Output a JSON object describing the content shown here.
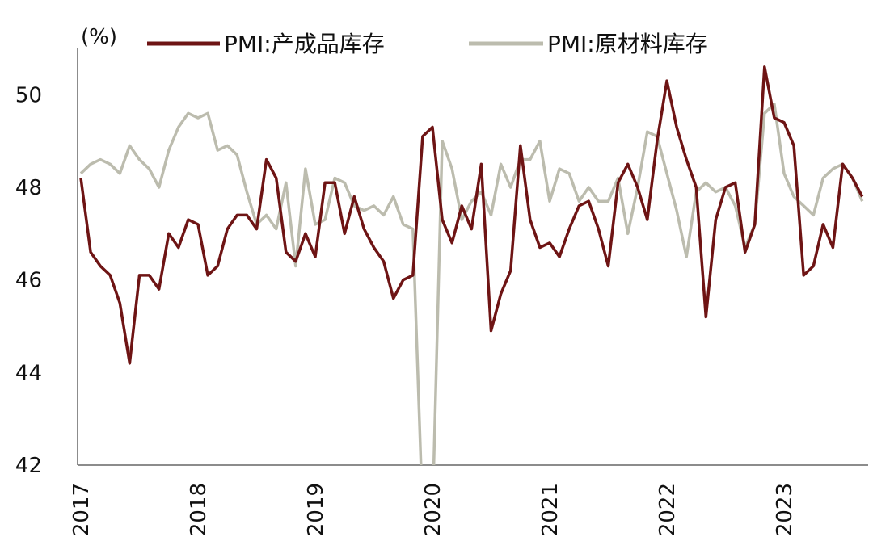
{
  "chart_data": {
    "type": "line",
    "unit_label": "(%)",
    "ylim": [
      42,
      51
    ],
    "y_ticks": [
      "42",
      "44",
      "46",
      "48",
      "50"
    ],
    "x_tick_labels": [
      "2017",
      "2018",
      "2019",
      "2020",
      "2021",
      "2022",
      "2023"
    ],
    "grid": false,
    "legend_position": "top",
    "series": [
      {
        "name": "PMI:产成品库存",
        "color": "#6e1414",
        "x": [
          "2017-01",
          "2017-02",
          "2017-03",
          "2017-04",
          "2017-05",
          "2017-06",
          "2017-07",
          "2017-08",
          "2017-09",
          "2017-10",
          "2017-11",
          "2017-12",
          "2018-01",
          "2018-02",
          "2018-03",
          "2018-04",
          "2018-05",
          "2018-06",
          "2018-07",
          "2018-08",
          "2018-09",
          "2018-10",
          "2018-11",
          "2018-12",
          "2019-01",
          "2019-02",
          "2019-03",
          "2019-04",
          "2019-05",
          "2019-06",
          "2019-07",
          "2019-08",
          "2019-09",
          "2019-10",
          "2019-11",
          "2019-12",
          "2020-01",
          "2020-02",
          "2020-03",
          "2020-04",
          "2020-05",
          "2020-06",
          "2020-07",
          "2020-08",
          "2020-09",
          "2020-10",
          "2020-11",
          "2020-12",
          "2021-01",
          "2021-02",
          "2021-03",
          "2021-04",
          "2021-05",
          "2021-06",
          "2021-07",
          "2021-08",
          "2021-09",
          "2021-10",
          "2021-11",
          "2021-12",
          "2022-01",
          "2022-02",
          "2022-03",
          "2022-04",
          "2022-05",
          "2022-06",
          "2022-07",
          "2022-08",
          "2022-09",
          "2022-10",
          "2022-11",
          "2022-12",
          "2023-01",
          "2023-02",
          "2023-03",
          "2023-04",
          "2023-05",
          "2023-06",
          "2023-07",
          "2023-08",
          "2023-09"
        ],
        "values": [
          48.2,
          46.6,
          46.3,
          46.1,
          45.5,
          44.2,
          46.1,
          46.1,
          45.8,
          47.0,
          46.7,
          47.3,
          47.2,
          46.1,
          46.3,
          47.1,
          47.4,
          47.4,
          47.1,
          48.6,
          48.2,
          46.6,
          46.4,
          47.0,
          46.5,
          48.1,
          48.1,
          47.0,
          47.8,
          47.1,
          46.7,
          46.4,
          45.6,
          46.0,
          46.1,
          49.1,
          49.3,
          47.3,
          46.8,
          47.6,
          47.1,
          48.5,
          44.9,
          45.7,
          46.2,
          48.9,
          47.3,
          46.7,
          46.8,
          46.5,
          47.1,
          47.6,
          47.7,
          47.1,
          46.3,
          48.1,
          48.5,
          48.0,
          47.3,
          49.0,
          50.3,
          49.3,
          48.6,
          48.0,
          45.2,
          47.3,
          48.0,
          48.1,
          46.6,
          47.2,
          50.6,
          49.5,
          49.4,
          48.9,
          46.1,
          46.3,
          47.2,
          46.7,
          48.5,
          48.2,
          47.8
        ]
      },
      {
        "name": "PMI:原材料库存",
        "color": "#bcbcae",
        "x": [
          "2017-01",
          "2017-02",
          "2017-03",
          "2017-04",
          "2017-05",
          "2017-06",
          "2017-07",
          "2017-08",
          "2017-09",
          "2017-10",
          "2017-11",
          "2017-12",
          "2018-01",
          "2018-02",
          "2018-03",
          "2018-04",
          "2018-05",
          "2018-06",
          "2018-07",
          "2018-08",
          "2018-09",
          "2018-10",
          "2018-11",
          "2018-12",
          "2019-01",
          "2019-02",
          "2019-03",
          "2019-04",
          "2019-05",
          "2019-06",
          "2019-07",
          "2019-08",
          "2019-09",
          "2019-10",
          "2019-11",
          "2019-12",
          "2020-01",
          "2020-02",
          "2020-03",
          "2020-04",
          "2020-05",
          "2020-06",
          "2020-07",
          "2020-08",
          "2020-09",
          "2020-10",
          "2020-11",
          "2020-12",
          "2021-01",
          "2021-02",
          "2021-03",
          "2021-04",
          "2021-05",
          "2021-06",
          "2021-07",
          "2021-08",
          "2021-09",
          "2021-10",
          "2021-11",
          "2021-12",
          "2022-01",
          "2022-02",
          "2022-03",
          "2022-04",
          "2022-05",
          "2022-06",
          "2022-07",
          "2022-08",
          "2022-09",
          "2022-10",
          "2022-11",
          "2022-12",
          "2023-01",
          "2023-02",
          "2023-03",
          "2023-04",
          "2023-05",
          "2023-06",
          "2023-07",
          "2023-08",
          "2023-09"
        ],
        "values": [
          48.3,
          48.5,
          48.6,
          48.5,
          48.3,
          48.9,
          48.6,
          48.4,
          48.0,
          48.8,
          49.3,
          49.6,
          49.5,
          49.6,
          48.8,
          48.9,
          48.7,
          47.9,
          47.2,
          47.4,
          47.1,
          48.1,
          46.3,
          48.4,
          47.2,
          47.3,
          48.2,
          48.1,
          47.6,
          47.5,
          47.6,
          47.4,
          47.8,
          47.2,
          47.1,
          40.9,
          40.9,
          49.0,
          48.4,
          47.3,
          47.7,
          47.9,
          47.4,
          48.5,
          48.0,
          48.6,
          48.6,
          49.0,
          47.7,
          48.4,
          48.3,
          47.7,
          48.0,
          47.7,
          47.7,
          48.2,
          47.0,
          48.0,
          49.2,
          49.1,
          48.3,
          47.5,
          46.5,
          47.9,
          48.1,
          47.9,
          48.0,
          47.6,
          46.7,
          47.2,
          49.6,
          49.8,
          48.3,
          47.8,
          47.6,
          47.4,
          48.2,
          48.4,
          48.5,
          48.2,
          47.7
        ]
      }
    ]
  }
}
